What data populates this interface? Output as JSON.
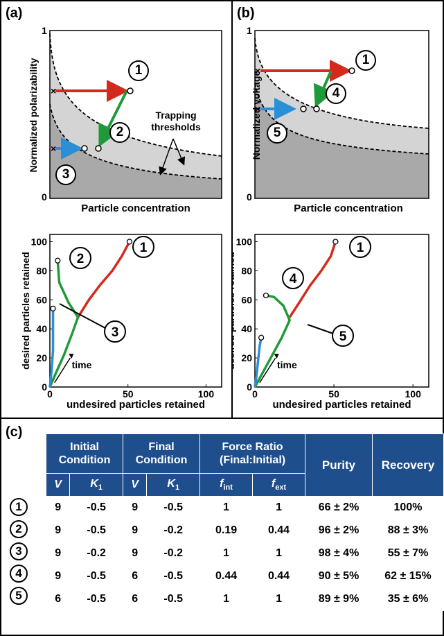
{
  "panels": {
    "a_label": "(a)",
    "b_label": "(b)",
    "c_label": "(c)"
  },
  "panel_a_top": {
    "ylabel": "Normalized polarizability",
    "xlabel": "Particle concentration",
    "ytick_top": "1",
    "ytick_bottom": "0",
    "annotation": "Trapping thresholds",
    "markers": [
      "1",
      "2",
      "3"
    ]
  },
  "panel_b_top": {
    "ylabel": "Normalized voltage",
    "xlabel": "Particle concentration",
    "ytick_top": "1",
    "ytick_bottom": "0",
    "markers": [
      "1",
      "4",
      "5"
    ]
  },
  "colors": {
    "red": "#d42a1e",
    "green": "#1f9a3a",
    "blue": "#2b8fd6",
    "region_light": "#d4d4d4",
    "region_dark": "#a9a9a9",
    "table_header": "#1f4e8c"
  },
  "chart_data": [
    {
      "type": "line",
      "panel": "a-bottom",
      "xlabel": "undesired particles retained",
      "ylabel": "desired particles retained",
      "xlim": [
        0,
        110
      ],
      "ylim": [
        0,
        105
      ],
      "xticks": [
        0,
        50,
        100
      ],
      "yticks": [
        0,
        20,
        40,
        60,
        80,
        100
      ],
      "annotation": "time",
      "series": [
        {
          "label": "1",
          "color": "red",
          "x": [
            18,
            25,
            32,
            40,
            46,
            51
          ],
          "y": [
            48,
            60,
            70,
            80,
            90,
            100
          ]
        },
        {
          "label": "2",
          "color": "green",
          "x": [
            0,
            4,
            9,
            14,
            18,
            12,
            6,
            5
          ],
          "y": [
            0,
            10,
            22,
            36,
            48,
            58,
            72,
            87
          ]
        },
        {
          "label": "3",
          "color": "blue",
          "x": [
            0,
            1,
            2,
            2,
            2
          ],
          "y": [
            0,
            10,
            25,
            40,
            54
          ]
        }
      ],
      "markers": [
        "1",
        "2",
        "3"
      ]
    },
    {
      "type": "line",
      "panel": "b-bottom",
      "xlabel": "undesired particles retained",
      "ylabel": "desired particles retained",
      "xlim": [
        0,
        110
      ],
      "ylim": [
        0,
        105
      ],
      "xticks": [
        0,
        50,
        100
      ],
      "yticks": [
        0,
        20,
        40,
        60,
        80,
        100
      ],
      "annotation": "time",
      "series": [
        {
          "label": "1",
          "color": "red",
          "x": [
            22,
            28,
            35,
            42,
            48,
            51
          ],
          "y": [
            48,
            58,
            70,
            80,
            90,
            100
          ]
        },
        {
          "label": "4",
          "color": "green",
          "x": [
            0,
            5,
            11,
            17,
            22,
            18,
            12,
            7
          ],
          "y": [
            0,
            10,
            22,
            34,
            46,
            56,
            62,
            63
          ]
        },
        {
          "label": "5",
          "color": "blue",
          "x": [
            0,
            1,
            2,
            3,
            4
          ],
          "y": [
            0,
            8,
            18,
            28,
            34
          ]
        }
      ],
      "markers": [
        "1",
        "4",
        "5"
      ]
    }
  ],
  "table": {
    "headers": {
      "initial": "Initial Condition",
      "final": "Final Condition",
      "force": "Force Ratio (Final:Initial)",
      "purity": "Purity",
      "recovery": "Recovery"
    },
    "sub": {
      "v1": "V",
      "k1": "K",
      "k1_sub": "1",
      "v2": "V",
      "k2": "K",
      "k2_sub": "1",
      "fint": "f",
      "fint_sub": "int",
      "fext": "f",
      "fext_sub": "ext"
    },
    "rows": [
      {
        "id": "1",
        "v_i": "9",
        "k_i": "-0.5",
        "v_f": "9",
        "k_f": "-0.5",
        "f_int": "1",
        "f_ext": "1",
        "purity": "66 ± 2%",
        "recovery": "100%"
      },
      {
        "id": "2",
        "v_i": "9",
        "k_i": "-0.5",
        "v_f": "9",
        "k_f": "-0.2",
        "f_int": "0.19",
        "f_ext": "0.44",
        "purity": "96 ± 2%",
        "recovery": "88 ± 3%"
      },
      {
        "id": "3",
        "v_i": "9",
        "k_i": "-0.2",
        "v_f": "9",
        "k_f": "-0.2",
        "f_int": "1",
        "f_ext": "1",
        "purity": "98 ± 4%",
        "recovery": "55 ± 7%"
      },
      {
        "id": "4",
        "v_i": "9",
        "k_i": "-0.5",
        "v_f": "6",
        "k_f": "-0.5",
        "f_int": "0.44",
        "f_ext": "0.44",
        "purity": "90 ± 5%",
        "recovery": "62 ± 15%"
      },
      {
        "id": "5",
        "v_i": "6",
        "k_i": "-0.5",
        "v_f": "6",
        "k_f": "-0.5",
        "f_int": "1",
        "f_ext": "1",
        "purity": "89 ± 9%",
        "recovery": "35 ± 6%"
      }
    ]
  }
}
